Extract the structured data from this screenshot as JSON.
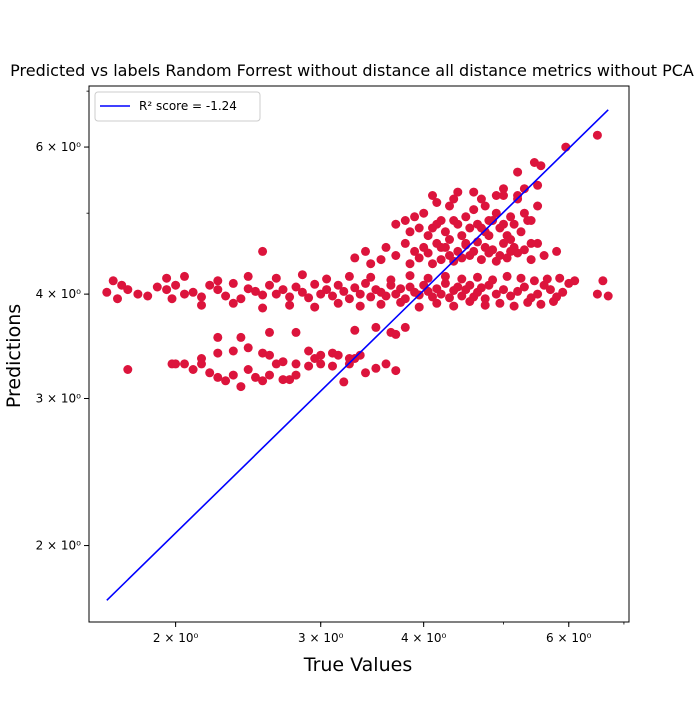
{
  "chart_data": {
    "type": "scatter",
    "title": "Predicted vs labels Random Forrest without distance all distance metrics without PCA",
    "xlabel": "True Values",
    "ylabel": "Predictions",
    "xscale": "log",
    "yscale": "log",
    "xlim": [
      1.57,
      7.1
    ],
    "ylim": [
      1.62,
      7.1
    ],
    "x_ticks": [
      {
        "value": 2,
        "label": "2 × 10⁰"
      },
      {
        "value": 3,
        "label": "3 × 10⁰"
      },
      {
        "value": 4,
        "label": "4 × 10⁰"
      },
      {
        "value": 6,
        "label": "6 × 10⁰"
      }
    ],
    "y_ticks": [
      {
        "value": 2,
        "label": "2 × 10⁰"
      },
      {
        "value": 3,
        "label": "3 × 10⁰"
      },
      {
        "value": 4,
        "label": "4 × 10⁰"
      },
      {
        "value": 6,
        "label": "6 × 10⁰"
      }
    ],
    "legend": {
      "position": "top-left",
      "label": "R² score = -1.24"
    },
    "grid": false,
    "colors": {
      "points": "#dc143c",
      "fit_line": "#0000ff"
    },
    "series": [
      {
        "type": "line",
        "x": [
          1.65,
          6.7
        ],
        "y": [
          1.72,
          6.65
        ]
      },
      {
        "type": "scatter",
        "x": [
          1.65,
          1.68,
          1.7,
          1.72,
          1.75,
          1.8,
          1.85,
          1.9,
          1.95,
          1.98,
          2.0,
          2.05,
          2.1,
          2.15,
          2.2,
          2.25,
          2.3,
          2.35,
          2.4,
          2.45,
          2.5,
          2.55,
          2.6,
          2.65,
          2.7,
          2.75,
          2.8,
          2.85,
          2.9,
          2.95,
          3.0,
          3.05,
          3.1,
          3.15,
          3.2,
          3.25,
          3.3,
          3.35,
          3.4,
          3.45,
          3.5,
          3.55,
          3.6,
          3.65,
          3.7,
          3.75,
          3.8,
          3.85,
          3.9,
          3.95,
          4.0,
          4.05,
          4.1,
          4.15,
          4.2,
          4.25,
          4.3,
          4.35,
          4.4,
          4.45,
          4.5,
          4.55,
          4.6,
          4.65,
          4.7,
          4.75,
          4.8,
          4.9,
          5.0,
          5.1,
          5.2,
          5.3,
          5.4,
          5.5,
          5.6,
          5.7,
          5.8,
          5.9,
          6.0,
          6.1,
          6.5,
          6.6,
          6.7,
          1.95,
          2.05,
          2.15,
          2.25,
          2.35,
          2.45,
          2.55,
          2.65,
          2.75,
          2.85,
          2.95,
          3.05,
          3.15,
          3.25,
          3.35,
          3.45,
          3.55,
          3.65,
          3.75,
          3.85,
          3.95,
          4.05,
          4.15,
          4.25,
          4.35,
          4.45,
          4.55,
          4.65,
          4.75,
          4.85,
          4.95,
          5.05,
          5.15,
          5.25,
          5.35,
          5.45,
          5.55,
          5.65,
          5.75,
          5.85,
          1.75,
          1.98,
          2.0,
          2.05,
          2.1,
          2.15,
          2.2,
          2.25,
          2.3,
          2.35,
          2.4,
          2.45,
          2.5,
          2.55,
          2.6,
          2.65,
          2.7,
          2.75,
          2.8,
          2.9,
          3.0,
          3.1,
          3.2,
          3.25,
          3.3,
          3.4,
          3.5,
          3.6,
          3.7,
          2.25,
          2.45,
          2.55,
          2.6,
          2.8,
          3.3,
          3.5,
          3.65,
          3.7,
          3.8,
          2.15,
          2.25,
          2.35,
          2.6,
          2.8,
          2.9,
          2.95,
          3.0,
          3.1,
          3.15,
          3.25,
          3.35,
          2.7,
          2.4,
          2.55,
          3.3,
          3.4,
          3.45,
          3.55,
          3.6,
          3.7,
          3.8,
          3.85,
          3.9,
          3.95,
          4.0,
          4.05,
          4.1,
          4.15,
          4.2,
          4.25,
          4.3,
          4.35,
          4.4,
          4.45,
          4.5,
          4.55,
          4.6,
          4.65,
          4.7,
          4.75,
          4.8,
          4.85,
          4.9,
          4.95,
          5.0,
          5.05,
          5.1,
          5.15,
          5.2,
          5.3,
          5.4,
          5.5,
          5.6,
          5.8,
          3.7,
          3.8,
          3.9,
          4.0,
          4.1,
          4.2,
          4.3,
          4.4,
          4.5,
          4.6,
          4.7,
          4.8,
          4.9,
          5.0,
          5.1,
          5.2,
          5.3,
          5.4,
          5.5,
          3.85,
          3.95,
          4.05,
          4.15,
          4.25,
          4.35,
          4.45,
          4.55,
          4.65,
          4.75,
          4.85,
          4.95,
          5.05,
          5.15,
          5.25,
          5.35,
          4.1,
          4.4,
          4.7,
          5.0,
          5.2,
          5.5,
          4.15,
          4.35,
          4.6,
          4.9,
          5.3,
          4.3,
          4.5,
          4.8,
          5.1,
          5.4,
          4.2,
          4.75,
          5.0,
          5.2,
          5.45,
          5.55,
          5.95,
          6.5
        ],
        "y": [
          4.02,
          4.15,
          3.95,
          4.1,
          4.05,
          4.0,
          3.98,
          4.08,
          4.05,
          3.95,
          4.1,
          4.0,
          4.02,
          3.97,
          4.1,
          4.05,
          3.98,
          4.12,
          3.95,
          4.06,
          4.03,
          3.99,
          4.1,
          4.0,
          4.05,
          3.97,
          4.08,
          4.02,
          3.96,
          4.11,
          4.0,
          4.05,
          3.98,
          4.1,
          4.03,
          3.95,
          4.07,
          4.0,
          4.12,
          3.97,
          4.05,
          4.02,
          3.98,
          4.1,
          4.0,
          4.06,
          3.95,
          4.08,
          4.02,
          3.99,
          4.1,
          4.03,
          3.97,
          4.06,
          4.0,
          4.12,
          3.96,
          4.04,
          4.08,
          3.98,
          4.05,
          4.1,
          3.97,
          4.02,
          4.07,
          3.95,
          4.1,
          4.0,
          4.05,
          3.98,
          4.03,
          4.08,
          3.96,
          4.0,
          4.1,
          4.05,
          3.97,
          4.02,
          4.12,
          4.15,
          4.0,
          4.15,
          3.98,
          4.18,
          4.2,
          3.88,
          4.15,
          3.9,
          4.2,
          3.85,
          4.18,
          3.88,
          4.22,
          3.86,
          4.17,
          3.9,
          4.2,
          3.87,
          4.19,
          3.89,
          4.16,
          3.91,
          4.21,
          3.86,
          4.18,
          3.9,
          4.2,
          3.87,
          4.17,
          3.92,
          4.19,
          3.88,
          4.16,
          3.9,
          4.2,
          3.87,
          4.18,
          3.91,
          4.15,
          3.89,
          4.17,
          3.92,
          4.18,
          3.25,
          3.3,
          3.3,
          3.3,
          3.25,
          3.3,
          3.22,
          3.18,
          3.15,
          3.2,
          3.1,
          3.25,
          3.18,
          3.15,
          3.2,
          3.3,
          3.16,
          3.16,
          3.2,
          3.28,
          3.3,
          3.28,
          3.14,
          3.3,
          3.35,
          3.22,
          3.26,
          3.3,
          3.24,
          3.55,
          3.45,
          3.4,
          3.6,
          3.6,
          3.62,
          3.65,
          3.6,
          3.58,
          3.65,
          3.35,
          3.4,
          3.42,
          3.38,
          3.3,
          3.42,
          3.35,
          3.38,
          3.4,
          3.38,
          3.35,
          3.38,
          3.32,
          3.55,
          4.5,
          4.42,
          4.5,
          4.35,
          4.4,
          4.55,
          4.45,
          4.6,
          4.35,
          4.5,
          4.42,
          4.55,
          4.48,
          4.35,
          4.6,
          4.4,
          4.55,
          4.45,
          4.38,
          4.5,
          4.42,
          4.58,
          4.45,
          4.5,
          4.62,
          4.4,
          4.55,
          4.48,
          4.52,
          4.38,
          4.45,
          4.6,
          4.42,
          4.5,
          4.55,
          4.48,
          4.52,
          4.4,
          4.6,
          4.45,
          4.5,
          4.85,
          4.9,
          4.95,
          5.0,
          4.8,
          4.9,
          5.1,
          4.85,
          4.95,
          5.05,
          4.8,
          4.9,
          5.0,
          4.85,
          4.95,
          5.2,
          5.0,
          4.9,
          5.1,
          4.75,
          4.8,
          4.7,
          4.85,
          4.75,
          4.9,
          4.7,
          4.8,
          4.85,
          4.75,
          4.9,
          4.8,
          4.7,
          4.85,
          4.75,
          4.9,
          5.25,
          5.3,
          5.2,
          5.35,
          5.25,
          5.4,
          5.15,
          5.2,
          5.3,
          5.25,
          5.35,
          4.65,
          4.6,
          4.7,
          4.65,
          4.6,
          4.55,
          5.1,
          5.25,
          5.6,
          5.75,
          5.7,
          6.0,
          6.2
        ]
      }
    ]
  }
}
